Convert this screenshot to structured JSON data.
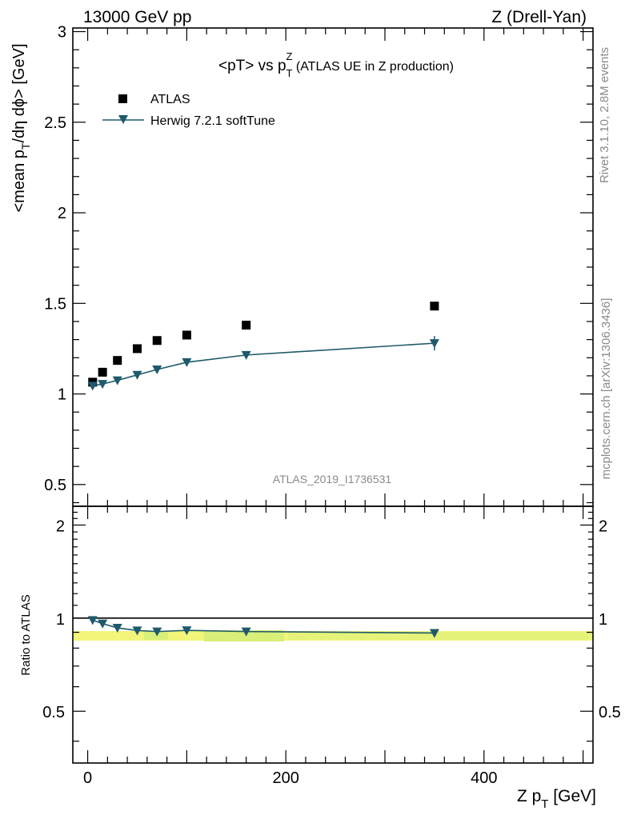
{
  "header": {
    "left": "13000 GeV pp",
    "right": "Z (Drell-Yan)"
  },
  "side_text": {
    "rivet": "Rivet 3.1.10,  2.8M events",
    "mcplots": "mcplots.cern.ch [arXiv:1306.3436]"
  },
  "watermark": "ATLAS_2019_I1736531",
  "colors": {
    "mc": "#1f5a6b",
    "data": "#000000",
    "band_yellow": "#f2f57a",
    "band_green": "#d8f07a"
  },
  "chart_data": [
    {
      "type": "scatter",
      "title_main": "<pT> vs p",
      "title_sup": "Z",
      "title_sub": "T",
      "title_rest": " (ATLAS UE in Z production)",
      "ylabel_a": "<mean p",
      "ylabel_sub": "T",
      "ylabel_b": "/dη dϕ> [GeV]",
      "xlim": [
        -15,
        510
      ],
      "ylim": [
        0.38,
        3.02
      ],
      "yticks": [
        0.5,
        1,
        1.5,
        2,
        2.5,
        3
      ],
      "ytick_labels": [
        "0.5",
        "1",
        "1.5",
        "2",
        "2.5",
        "3"
      ],
      "legend": [
        "ATLAS",
        "Herwig 7.2.1 softTune"
      ],
      "legend_position": "top-left",
      "series": [
        {
          "name": "ATLAS",
          "x": [
            5,
            15,
            30,
            50,
            70,
            100,
            160,
            350
          ],
          "y": [
            1.065,
            1.12,
            1.185,
            1.25,
            1.295,
            1.325,
            1.38,
            1.485
          ]
        },
        {
          "name": "Herwig 7.2.1 softTune",
          "x": [
            5,
            15,
            30,
            50,
            70,
            100,
            160,
            350
          ],
          "y": [
            1.045,
            1.055,
            1.075,
            1.105,
            1.135,
            1.175,
            1.215,
            1.28
          ],
          "yerr": [
            0.008,
            0.008,
            0.008,
            0.008,
            0.009,
            0.01,
            0.012,
            0.04
          ]
        }
      ]
    },
    {
      "type": "line",
      "ylabel": "Ratio to ATLAS",
      "xlabel_a": "Z p",
      "xlabel_sub": "T",
      "xlabel_b": " [GeV]",
      "xlim": [
        -15,
        510
      ],
      "ylim": [
        0.34,
        2.3
      ],
      "xticks": [
        0,
        200,
        400
      ],
      "xtick_labels": [
        "0",
        "200",
        "400"
      ],
      "yticks": [
        0.5,
        1,
        2
      ],
      "ytick_labels": [
        "0.5",
        "1",
        "2"
      ],
      "series": [
        {
          "name": "Herwig 7.2.1 softTune / ATLAS",
          "x": [
            5,
            15,
            30,
            50,
            70,
            100,
            160,
            350
          ],
          "y": [
            0.985,
            0.96,
            0.93,
            0.912,
            0.905,
            0.913,
            0.905,
            0.895
          ],
          "yerr": [
            0.006,
            0.006,
            0.006,
            0.006,
            0.006,
            0.007,
            0.008,
            0.025
          ]
        }
      ]
    }
  ]
}
